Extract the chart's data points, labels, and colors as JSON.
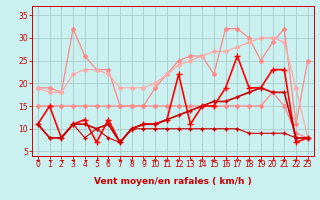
{
  "bg_color": "#caf0f0",
  "grid_color": "#aacccc",
  "xlabel": "Vent moyen/en rafales ( km/h )",
  "x": [
    0,
    1,
    2,
    3,
    4,
    5,
    6,
    7,
    8,
    9,
    10,
    11,
    12,
    13,
    14,
    15,
    16,
    17,
    18,
    19,
    20,
    21,
    22,
    23
  ],
  "series": [
    {
      "color": "#ff8888",
      "lw": 0.9,
      "marker": "D",
      "ms": 2.0,
      "values": [
        19,
        19,
        18,
        32,
        26,
        23,
        23,
        15,
        15,
        15,
        19,
        22,
        25,
        26,
        26,
        22,
        32,
        32,
        30,
        25,
        29,
        32,
        11,
        25
      ]
    },
    {
      "color": "#ffaaaa",
      "lw": 0.9,
      "marker": "D",
      "ms": 2.0,
      "values": [
        19,
        18,
        18,
        22,
        23,
        23,
        22,
        19,
        19,
        19,
        20,
        22,
        24,
        25,
        26,
        27,
        27,
        28,
        29,
        30,
        30,
        29,
        19,
        8
      ]
    },
    {
      "color": "#ff8888",
      "lw": 0.9,
      "marker": "D",
      "ms": 2.0,
      "values": [
        15,
        15,
        15,
        15,
        15,
        15,
        15,
        15,
        15,
        15,
        15,
        15,
        15,
        15,
        15,
        15,
        15,
        15,
        15,
        15,
        18,
        15,
        9,
        8
      ]
    },
    {
      "color": "#ff0000",
      "lw": 1.2,
      "marker": "+",
      "ms": 4.0,
      "values": [
        11,
        15,
        8,
        11,
        12,
        7,
        12,
        7,
        10,
        11,
        11,
        12,
        22,
        11,
        15,
        15,
        19,
        26,
        19,
        19,
        23,
        23,
        7,
        8
      ]
    },
    {
      "color": "#cc0000",
      "lw": 1.2,
      "marker": "+",
      "ms": 3.5,
      "values": [
        11,
        8,
        8,
        11,
        11,
        10,
        11,
        7,
        10,
        11,
        11,
        12,
        13,
        14,
        15,
        16,
        16,
        17,
        18,
        19,
        18,
        18,
        8,
        8
      ]
    },
    {
      "color": "#cc0000",
      "lw": 0.8,
      "marker": "+",
      "ms": 2.5,
      "values": [
        11,
        8,
        8,
        11,
        8,
        10,
        8,
        7,
        10,
        10,
        10,
        10,
        10,
        10,
        10,
        10,
        10,
        10,
        9,
        9,
        9,
        9,
        8,
        8
      ]
    }
  ],
  "yticks": [
    5,
    10,
    15,
    20,
    25,
    30,
    35
  ],
  "xticks": [
    0,
    1,
    2,
    3,
    4,
    5,
    6,
    7,
    8,
    9,
    10,
    11,
    12,
    13,
    14,
    15,
    16,
    17,
    18,
    19,
    20,
    21,
    22,
    23
  ],
  "ylim": [
    4,
    37
  ],
  "xlim": [
    -0.5,
    23.5
  ],
  "tick_color": "#cc0000",
  "spine_color": "#cc0000",
  "label_fontsize": 5.5,
  "xlabel_fontsize": 6.5,
  "arrow_angles": [
    270,
    225,
    225,
    270,
    225,
    315,
    0,
    0,
    0,
    315,
    0,
    0,
    0,
    315,
    0,
    0,
    315,
    0,
    0,
    0,
    315,
    0,
    0,
    0
  ]
}
